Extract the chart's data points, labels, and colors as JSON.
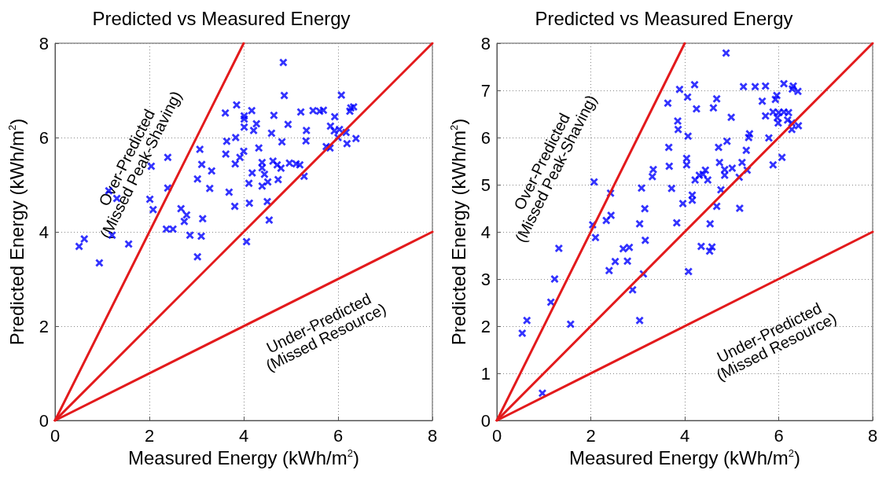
{
  "chart_data": [
    {
      "type": "scatter",
      "title": "Predicted vs Measured Energy",
      "xlabel": "Measured Energy (kWh/m$^{2}$)",
      "ylabel": "Predicted Energy (kWh/m$^{2}$)",
      "annotations": [
        "Over-Predicted\n(Missed Peak-Shaving)",
        "Under-Predicted\n(Missed Resource)"
      ],
      "xlim": [
        0,
        8
      ],
      "ylim": [
        0,
        8
      ],
      "xticks": [
        0,
        2,
        4,
        6,
        8
      ],
      "yticks": [
        0,
        2,
        4,
        6,
        8
      ],
      "grid": true,
      "marker": "cross",
      "series": [
        {
          "color": "#0000ff",
          "x": [
            4.84,
            4.86,
            6.07,
            3.85,
            3.61,
            4.01,
            4.01,
            4.17,
            4.01,
            4.27,
            4.21,
            4.64,
            4.94,
            5.21,
            5.47,
            5.61,
            5.69,
            5.93,
            6.27,
            6.33,
            6.25,
            5.33,
            5.32,
            4.59,
            4.81,
            5.84,
            5.92,
            6.03,
            6.17,
            6.0,
            6.38,
            6.19,
            5.75,
            5.83,
            3.83,
            3.64,
            3.62,
            4.0,
            3.92,
            3.82,
            4.32,
            3.07,
            3.11,
            3.32,
            3.02,
            3.28,
            2.39,
            2.04,
            2.39,
            3.69,
            3.81,
            4.12,
            4.11,
            4.18,
            4.39,
            4.39,
            4.44,
            4.51,
            4.39,
            4.62,
            4.71,
            4.79,
            4.73,
            4.97,
            5.11,
            5.19,
            5.28,
            4.5,
            4.54,
            4.06,
            1.14,
            1.31,
            2.01,
            2.08,
            2.67,
            2.79,
            2.74,
            3.13,
            2.36,
            2.5,
            2.86,
            3.1,
            3.02,
            1.21,
            1.56,
            0.62,
            0.51,
            0.94
          ],
          "values": [
            7.59,
            6.89,
            6.9,
            6.69,
            6.52,
            6.46,
            6.39,
            6.57,
            6.22,
            6.29,
            6.15,
            6.47,
            6.28,
            6.54,
            6.57,
            6.56,
            6.58,
            6.44,
            6.63,
            6.65,
            6.56,
            6.15,
            5.93,
            6.09,
            5.91,
            6.24,
            6.14,
            6.17,
            6.11,
            6.0,
            5.98,
            5.87,
            5.81,
            5.78,
            6.0,
            5.92,
            5.65,
            5.71,
            5.58,
            5.44,
            5.78,
            5.75,
            5.43,
            5.29,
            5.12,
            4.92,
            5.58,
            5.39,
            4.93,
            4.84,
            4.54,
            4.61,
            5.03,
            5.25,
            5.47,
            5.36,
            5.22,
            5.06,
            4.97,
            5.5,
            5.42,
            5.35,
            5.11,
            5.46,
            5.44,
            5.42,
            5.18,
            4.64,
            4.25,
            3.79,
            4.87,
            4.71,
            4.69,
            4.47,
            4.49,
            4.36,
            4.22,
            4.28,
            4.06,
            4.06,
            3.93,
            3.91,
            3.47,
            3.93,
            3.74,
            3.85,
            3.69,
            3.34
          ]
        },
        {
          "type": "line",
          "color": "#e31a1c",
          "marker": "none",
          "x": [
            0,
            4
          ],
          "values": [
            0,
            8
          ]
        },
        {
          "type": "line",
          "color": "#e31a1c",
          "marker": "none",
          "x": [
            0,
            8
          ],
          "values": [
            0,
            8
          ]
        },
        {
          "type": "line",
          "color": "#e31a1c",
          "marker": "none",
          "x": [
            0,
            8
          ],
          "values": [
            0,
            4
          ]
        }
      ]
    },
    {
      "type": "scatter",
      "title": "Predicted vs Measured Energy",
      "xlabel": "Measured Energy (kWh/m$^{2}$)",
      "ylabel": "Predicted Energy (kWh/m$^{2}$)",
      "annotations": [
        "Over-Predicted\n(Missed Peak-Shaving)",
        "Under-Predicted\n(Missed Resource)"
      ],
      "xlim": [
        0,
        8
      ],
      "ylim": [
        0,
        8
      ],
      "xticks": [
        0,
        2,
        4,
        6,
        8
      ],
      "yticks": [
        0,
        1,
        2,
        3,
        4,
        5,
        6,
        7,
        8
      ],
      "grid": true,
      "marker": "cross",
      "series": [
        {
          "color": "#0000ff",
          "x": [
            4.88,
            4.21,
            3.89,
            4.06,
            3.64,
            4.25,
            5.25,
            5.5,
            5.72,
            6.11,
            6.31,
            6.29,
            6.41,
            5.96,
            5.93,
            5.65,
            4.68,
            4.61,
            4.99,
            5.72,
            5.88,
            6.0,
            6.11,
            6.21,
            5.97,
            5.99,
            6.19,
            6.28,
            6.42,
            6.28,
            3.85,
            3.86,
            4.07,
            5.38,
            5.36,
            5.79,
            3.66,
            4.9,
            4.72,
            5.31,
            6.07,
            5.88,
            4.04,
            4.04,
            3.67,
            4.74,
            5.22,
            5.01,
            5.33,
            4.85,
            4.85,
            5.16,
            4.44,
            4.39,
            4.31,
            4.22,
            4.49,
            3.33,
            3.31,
            3.08,
            3.72,
            4.77,
            2.07,
            2.42,
            4.16,
            4.16,
            3.96,
            4.68,
            5.17,
            3.15,
            3.04,
            3.16,
            3.83,
            4.54,
            4.35,
            4.53,
            4.58,
            4.08,
            2.43,
            2.33,
            2.04,
            2.1,
            1.32,
            2.69,
            2.82,
            2.52,
            2.78,
            2.39,
            3.12,
            2.89,
            3.04,
            1.23,
            1.15,
            0.64,
            0.54,
            1.57,
            0.97
          ],
          "values": [
            7.79,
            7.12,
            7.02,
            6.86,
            6.73,
            6.61,
            7.08,
            7.08,
            7.09,
            7.14,
            7.09,
            7.03,
            6.98,
            6.89,
            6.81,
            6.77,
            6.82,
            6.63,
            6.43,
            6.46,
            6.54,
            6.53,
            6.54,
            6.53,
            6.42,
            6.31,
            6.37,
            6.31,
            6.25,
            6.17,
            6.35,
            6.17,
            6.03,
            6.08,
            6.0,
            5.99,
            5.79,
            5.92,
            5.79,
            5.73,
            5.58,
            5.42,
            5.56,
            5.42,
            5.39,
            5.47,
            5.47,
            5.35,
            5.31,
            5.32,
            5.2,
            5.16,
            5.31,
            5.22,
            5.2,
            5.1,
            5.1,
            5.32,
            5.17,
            4.93,
            4.92,
            4.89,
            5.06,
            4.82,
            4.78,
            4.67,
            4.6,
            4.54,
            4.5,
            4.49,
            4.17,
            3.82,
            4.19,
            4.17,
            3.69,
            3.59,
            3.68,
            3.16,
            4.35,
            4.24,
            4.15,
            3.88,
            3.65,
            3.64,
            3.67,
            3.37,
            3.38,
            3.18,
            3.11,
            2.77,
            2.12,
            3.0,
            2.51,
            2.12,
            1.85,
            2.04,
            0.58
          ]
        },
        {
          "type": "line",
          "color": "#e31a1c",
          "marker": "none",
          "x": [
            0,
            4
          ],
          "values": [
            0,
            8
          ]
        },
        {
          "type": "line",
          "color": "#e31a1c",
          "marker": "none",
          "x": [
            0,
            8
          ],
          "values": [
            0,
            8
          ]
        },
        {
          "type": "line",
          "color": "#e31a1c",
          "marker": "none",
          "x": [
            0,
            8
          ],
          "values": [
            0,
            4
          ]
        }
      ]
    }
  ]
}
